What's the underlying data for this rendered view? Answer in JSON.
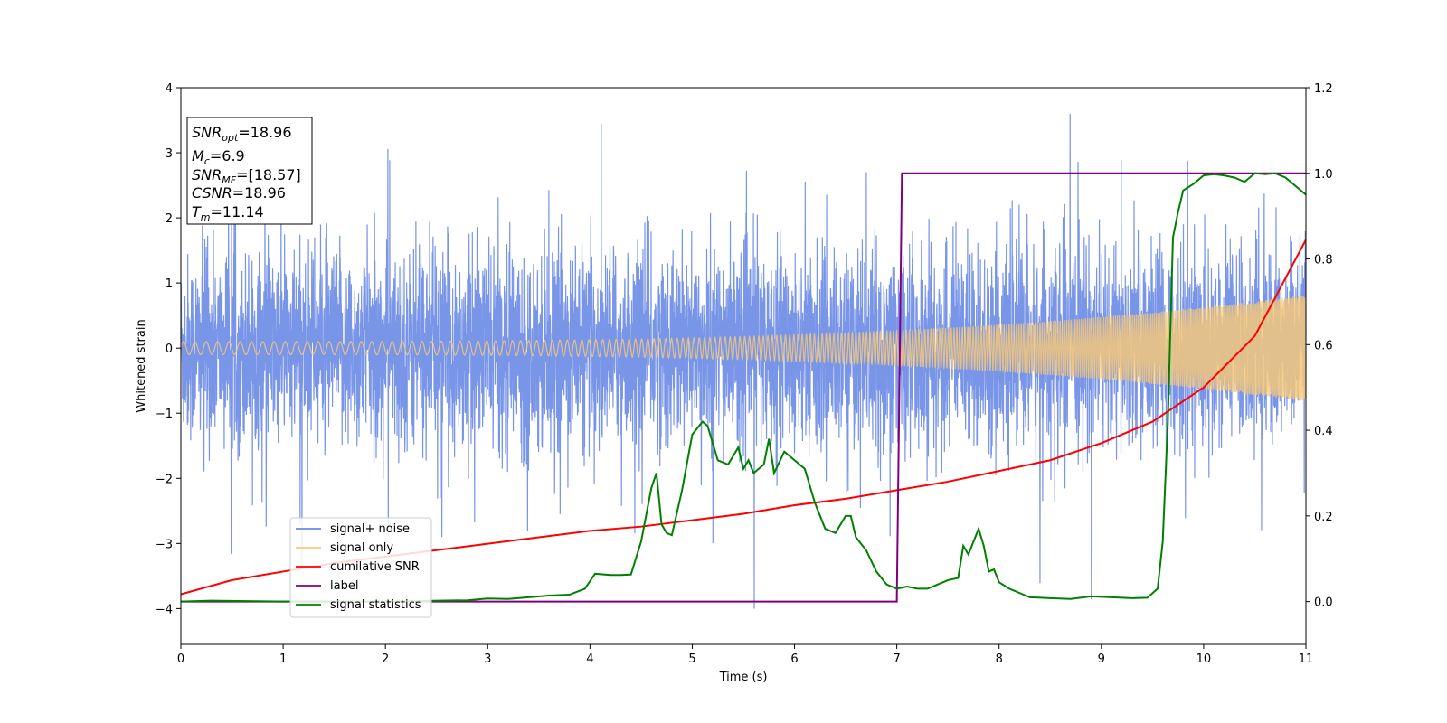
{
  "chart_data": {
    "type": "line",
    "xlabel": "Time (s)",
    "ylabel": "Whitened strain",
    "xlim": [
      0,
      11
    ],
    "ylim_left": [
      -4.55,
      4
    ],
    "ylim_right": [
      -0.1,
      1.2
    ],
    "x_ticks": [
      "0",
      "1",
      "2",
      "3",
      "4",
      "5",
      "6",
      "7",
      "8",
      "9",
      "10",
      "11"
    ],
    "y_ticks_left": [
      "−4",
      "−3",
      "−2",
      "−1",
      "0",
      "1",
      "2",
      "3",
      "4"
    ],
    "y_ticks_right": [
      "0.0",
      "0.2",
      "0.4",
      "0.6",
      "0.8",
      "1.0",
      "1.2"
    ],
    "info_box": {
      "snr_opt": {
        "sym": "SNR",
        "sub": "opt",
        "val": "=18.96"
      },
      "mc": {
        "sym": "M",
        "sub": "c",
        "val": "=6.9"
      },
      "snr_mf": {
        "sym": "SNR",
        "sub": "MF",
        "val": "=[18.57]"
      },
      "csnr": {
        "sym": "CSNR",
        "val": "=18.96"
      },
      "tm": {
        "sym": "T",
        "sub": "m",
        "val": "=11.14"
      }
    },
    "legend_location": "lower-left",
    "series": [
      {
        "name": "signal+ noise",
        "axis": "left",
        "color": "#6a8ae6",
        "description_kind": "noise",
        "noise_std": 0.95,
        "envelope_peak_max": 3.6,
        "envelope_trough_min": -4.15
      },
      {
        "name": "signal only",
        "axis": "left",
        "color": "#f5c87a",
        "description_kind": "chirp",
        "amplitude_start": 0.1,
        "amplitude_end": 0.82
      },
      {
        "name": "cumilative SNR",
        "axis": "right",
        "color": "#ff0000",
        "x": [
          0,
          0.5,
          1,
          1.5,
          2,
          2.5,
          3,
          3.5,
          4,
          4.5,
          5,
          5.5,
          6,
          6.5,
          7,
          7.5,
          8,
          8.5,
          9,
          9.5,
          10,
          10.5,
          11
        ],
        "y": [
          0.017,
          0.05,
          0.07,
          0.09,
          0.105,
          0.12,
          0.135,
          0.15,
          0.165,
          0.175,
          0.19,
          0.205,
          0.225,
          0.24,
          0.26,
          0.28,
          0.305,
          0.33,
          0.37,
          0.42,
          0.5,
          0.62,
          0.845
        ]
      },
      {
        "name": "label",
        "axis": "right",
        "color": "#800080",
        "x": [
          0,
          7.0,
          7.05,
          11
        ],
        "y": [
          0.0,
          0.0,
          1.0,
          1.0
        ]
      },
      {
        "name": "signal statistics",
        "axis": "right",
        "color": "#008000",
        "x": [
          0,
          0.3,
          1.0,
          2.0,
          2.8,
          3.0,
          3.2,
          3.4,
          3.6,
          3.8,
          3.95,
          4.05,
          4.2,
          4.3,
          4.4,
          4.5,
          4.6,
          4.65,
          4.7,
          4.75,
          4.8,
          4.9,
          5.0,
          5.1,
          5.15,
          5.25,
          5.35,
          5.45,
          5.5,
          5.55,
          5.6,
          5.7,
          5.75,
          5.8,
          5.9,
          6.0,
          6.1,
          6.2,
          6.3,
          6.4,
          6.5,
          6.55,
          6.6,
          6.7,
          6.8,
          6.9,
          7.0,
          7.1,
          7.2,
          7.3,
          7.4,
          7.5,
          7.6,
          7.65,
          7.7,
          7.75,
          7.8,
          7.85,
          7.9,
          7.95,
          8.0,
          8.1,
          8.2,
          8.3,
          8.5,
          8.7,
          8.9,
          9.1,
          9.3,
          9.45,
          9.55,
          9.6,
          9.65,
          9.7,
          9.75,
          9.8,
          9.9,
          10.0,
          10.1,
          10.2,
          10.3,
          10.4,
          10.5,
          10.6,
          10.7,
          10.8,
          10.9,
          11.0
        ],
        "y": [
          0.0,
          0.002,
          0.0,
          0.0,
          0.003,
          0.007,
          0.006,
          0.01,
          0.014,
          0.016,
          0.03,
          0.065,
          0.062,
          0.062,
          0.063,
          0.14,
          0.265,
          0.3,
          0.18,
          0.16,
          0.155,
          0.26,
          0.39,
          0.42,
          0.41,
          0.33,
          0.32,
          0.36,
          0.31,
          0.33,
          0.3,
          0.32,
          0.38,
          0.3,
          0.35,
          0.33,
          0.31,
          0.23,
          0.17,
          0.16,
          0.2,
          0.2,
          0.15,
          0.12,
          0.07,
          0.04,
          0.03,
          0.035,
          0.03,
          0.03,
          0.04,
          0.05,
          0.055,
          0.13,
          0.11,
          0.14,
          0.17,
          0.13,
          0.07,
          0.075,
          0.045,
          0.03,
          0.02,
          0.01,
          0.008,
          0.006,
          0.012,
          0.01,
          0.008,
          0.009,
          0.03,
          0.14,
          0.42,
          0.85,
          0.91,
          0.96,
          0.975,
          0.995,
          0.998,
          0.995,
          0.99,
          0.98,
          1.0,
          0.998,
          1.0,
          0.99,
          0.97,
          0.95
        ]
      }
    ]
  }
}
